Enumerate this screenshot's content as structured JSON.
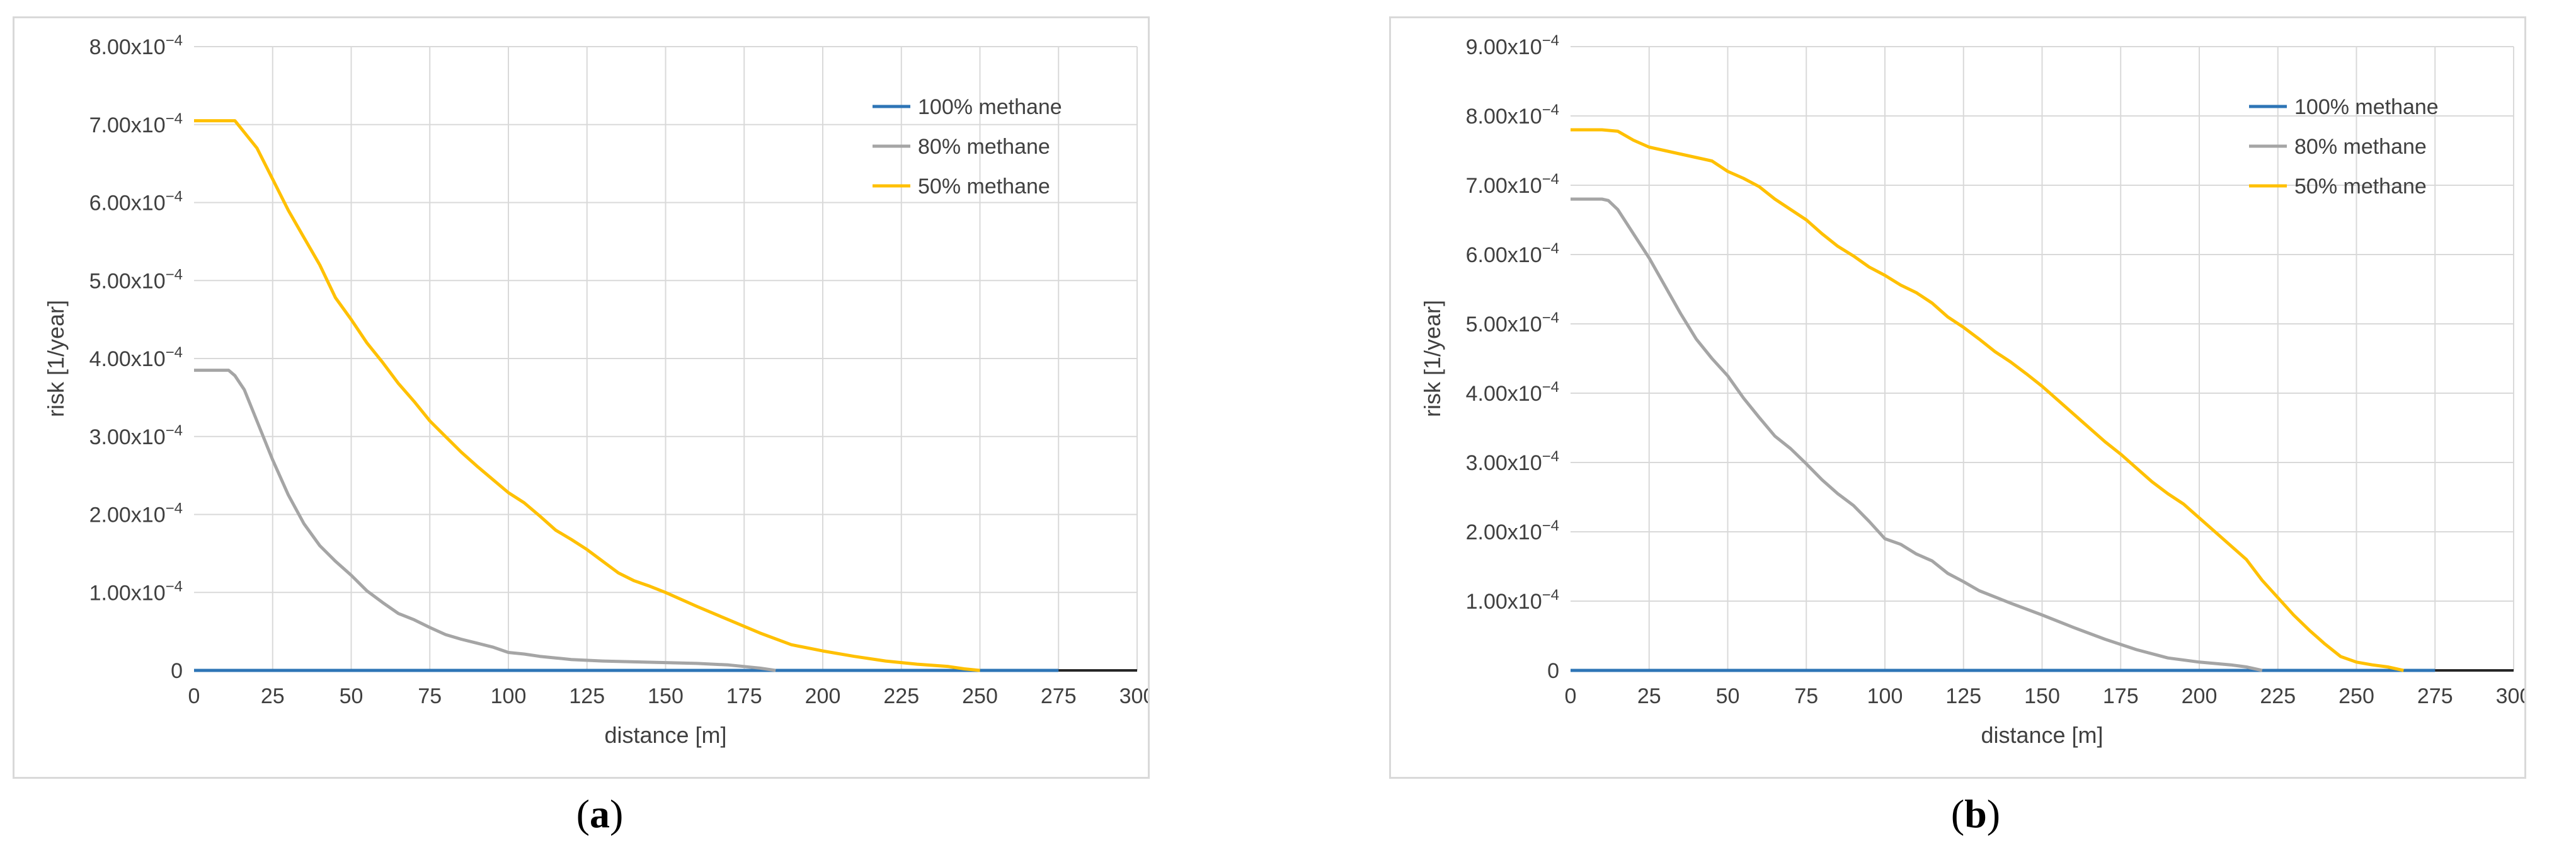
{
  "chart_data": [
    {
      "type": "line",
      "panel": "a",
      "caption": "a",
      "xlabel": "distance [m]",
      "ylabel": "risk [1/year]",
      "xlim": [
        0,
        300
      ],
      "ylim": [
        0,
        0.0008
      ],
      "x_ticks": [
        0,
        25,
        50,
        75,
        100,
        125,
        150,
        175,
        200,
        225,
        250,
        275,
        300
      ],
      "y_ticks": [
        0,
        0.0001,
        0.0002,
        0.0003,
        0.0004,
        0.0005,
        0.0006,
        0.0007,
        0.0008
      ],
      "y_tick_labels": [
        "0",
        "1.00x10",
        "2.00x10",
        "3.00x10",
        "4.00x10",
        "5.00x10",
        "6.00x10",
        "7.00x10",
        "8.00x10"
      ],
      "y_tick_exponent": "−4",
      "grid": true,
      "legend_position": "top-right",
      "series": [
        {
          "name": "100% methane",
          "color": "#2e75b6",
          "x": [
            0,
            275
          ],
          "y": [
            0,
            0
          ]
        },
        {
          "name": "80% methane",
          "color": "#a5a5a5",
          "x": [
            0,
            5,
            11,
            13,
            16,
            20,
            25,
            30,
            35,
            40,
            45,
            50,
            55,
            60,
            65,
            70,
            75,
            80,
            85,
            90,
            95,
            100,
            105,
            110,
            115,
            120,
            130,
            140,
            150,
            160,
            170,
            180,
            185
          ],
          "y": [
            0.000385,
            0.000385,
            0.000385,
            0.000378,
            0.00036,
            0.00032,
            0.00027,
            0.000225,
            0.000188,
            0.00016,
            0.00014,
            0.000122,
            0.000102,
            8.7e-05,
            7.3e-05,
            6.5e-05,
            5.5e-05,
            4.6e-05,
            4e-05,
            3.5e-05,
            3e-05,
            2.3e-05,
            2.1e-05,
            1.8e-05,
            1.6e-05,
            1.4e-05,
            1.2e-05,
            1.1e-05,
            1e-05,
            9e-06,
            7e-06,
            3e-06,
            0.0
          ]
        },
        {
          "name": "50% methane",
          "color": "#ffc000",
          "x": [
            0,
            5,
            10,
            13,
            16,
            20,
            25,
            30,
            35,
            40,
            45,
            50,
            55,
            60,
            65,
            70,
            75,
            80,
            85,
            90,
            95,
            100,
            105,
            110,
            115,
            120,
            125,
            130,
            135,
            140,
            145,
            150,
            160,
            170,
            180,
            190,
            200,
            210,
            220,
            225,
            230,
            240,
            245,
            250
          ],
          "y": [
            0.000705,
            0.000705,
            0.000705,
            0.000705,
            0.00069,
            0.00067,
            0.00063,
            0.00059,
            0.000555,
            0.00052,
            0.000478,
            0.00045,
            0.00042,
            0.000395,
            0.000368,
            0.000345,
            0.00032,
            0.0003,
            0.00028,
            0.000262,
            0.000245,
            0.000228,
            0.000215,
            0.000198,
            0.00018,
            0.000168,
            0.000155,
            0.00014,
            0.000125,
            0.000115,
            0.000108,
            0.0001,
            8.2e-05,
            6.5e-05,
            4.8e-05,
            3.3e-05,
            2.5e-05,
            1.8e-05,
            1.2e-05,
            1e-05,
            8e-06,
            5e-06,
            2e-06,
            0.0
          ]
        }
      ]
    },
    {
      "type": "line",
      "panel": "b",
      "caption": "b",
      "xlabel": "distance [m]",
      "ylabel": "risk [1/year]",
      "xlim": [
        0,
        300
      ],
      "ylim": [
        0,
        0.0009
      ],
      "x_ticks": [
        0,
        25,
        50,
        75,
        100,
        125,
        150,
        175,
        200,
        225,
        250,
        275,
        300
      ],
      "y_ticks": [
        0,
        0.0001,
        0.0002,
        0.0003,
        0.0004,
        0.0005,
        0.0006,
        0.0007,
        0.0008,
        0.0009
      ],
      "y_tick_labels": [
        "0",
        "1.00x10",
        "2.00x10",
        "3.00x10",
        "4.00x10",
        "5.00x10",
        "6.00x10",
        "7.00x10",
        "8.00x10",
        "9.00x10"
      ],
      "y_tick_exponent": "−4",
      "grid": true,
      "legend_position": "top-right",
      "series": [
        {
          "name": "100% methane",
          "color": "#2e75b6",
          "x": [
            0,
            275
          ],
          "y": [
            0,
            0
          ]
        },
        {
          "name": "80% methane",
          "color": "#a5a5a5",
          "x": [
            0,
            5,
            10,
            12,
            15,
            20,
            25,
            30,
            35,
            40,
            45,
            50,
            55,
            60,
            65,
            70,
            75,
            80,
            85,
            90,
            95,
            100,
            105,
            110,
            115,
            120,
            125,
            130,
            140,
            150,
            160,
            170,
            180,
            190,
            200,
            210,
            215,
            220
          ],
          "y": [
            0.00068,
            0.00068,
            0.00068,
            0.000678,
            0.000665,
            0.00063,
            0.000595,
            0.000555,
            0.000515,
            0.000478,
            0.00045,
            0.000425,
            0.000393,
            0.000365,
            0.000338,
            0.00032,
            0.000298,
            0.000275,
            0.000255,
            0.000238,
            0.000215,
            0.00019,
            0.000182,
            0.000168,
            0.000158,
            0.00014,
            0.000128,
            0.000115,
            9.7e-05,
            8e-05,
            6.2e-05,
            4.5e-05,
            3e-05,
            1.8e-05,
            1.2e-05,
            8e-06,
            5e-06,
            0.0
          ]
        },
        {
          "name": "50% methane",
          "color": "#ffc000",
          "x": [
            0,
            5,
            10,
            15,
            20,
            25,
            30,
            35,
            40,
            45,
            50,
            55,
            60,
            65,
            70,
            75,
            80,
            85,
            90,
            95,
            100,
            105,
            110,
            115,
            120,
            125,
            130,
            135,
            140,
            145,
            150,
            155,
            160,
            165,
            170,
            175,
            180,
            185,
            190,
            195,
            200,
            205,
            210,
            215,
            220,
            225,
            230,
            235,
            240,
            245,
            250,
            255,
            260,
            265
          ],
          "y": [
            0.00078,
            0.00078,
            0.00078,
            0.000778,
            0.000765,
            0.000755,
            0.00075,
            0.000745,
            0.00074,
            0.000735,
            0.00072,
            0.00071,
            0.000698,
            0.00068,
            0.000665,
            0.00065,
            0.00063,
            0.000612,
            0.000598,
            0.000582,
            0.00057,
            0.000556,
            0.000545,
            0.00053,
            0.00051,
            0.000495,
            0.000478,
            0.00046,
            0.000445,
            0.000428,
            0.00041,
            0.00039,
            0.00037,
            0.00035,
            0.00033,
            0.000312,
            0.000292,
            0.000272,
            0.000255,
            0.00024,
            0.00022,
            0.0002,
            0.00018,
            0.00016,
            0.00013,
            0.000105,
            8e-05,
            5.8e-05,
            3.8e-05,
            2e-05,
            1.2e-05,
            8e-06,
            5e-06,
            0.0
          ]
        }
      ]
    }
  ]
}
